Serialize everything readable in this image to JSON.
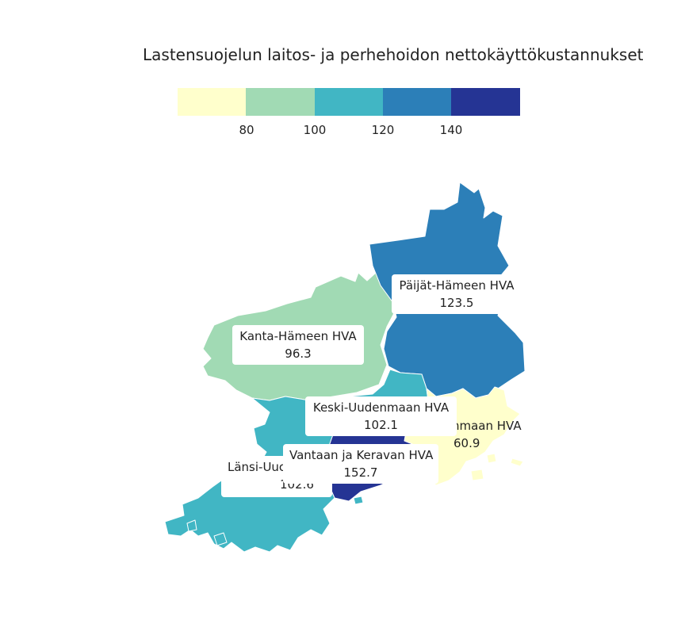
{
  "title": "Lastensuojelun laitos- ja perhehoidon nettokäyttökustannukset",
  "legend": {
    "colors": [
      "#ffffcc",
      "#a1dab4",
      "#41b6c4",
      "#2c7fb8",
      "#253494"
    ],
    "ticks": [
      "80",
      "100",
      "120",
      "140"
    ]
  },
  "regions": {
    "paijat_hame": {
      "name": "Päijät-Hämeen HVA",
      "value": "123.5",
      "color": "#2c7fb8"
    },
    "kanta_hame": {
      "name": "Kanta-Hämeen HVA",
      "value": "96.3",
      "color": "#a1dab4"
    },
    "keski_uusimaa": {
      "name": "Keski-Uudenmaan HVA",
      "value": "102.1",
      "color": "#41b6c4"
    },
    "ita_uusimaa": {
      "name": "nmaan HVA",
      "value": "60.9",
      "color": "#ffffcc"
    },
    "vantaa_kerava": {
      "name": "Vantaan ja Keravan HVA",
      "value": "152.7",
      "color": "#253494"
    },
    "lansi_uusimaa": {
      "name": "Länsi-Uuc",
      "value": "102.6",
      "color": "#41b6c4"
    }
  }
}
